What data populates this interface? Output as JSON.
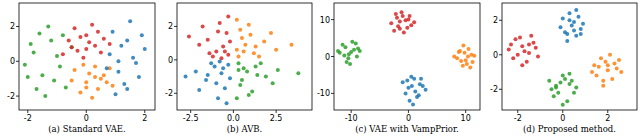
{
  "chart_data": [
    {
      "type": "scatter",
      "title": "(a) Standard VAE.",
      "xlim": [
        -2.3,
        2.35
      ],
      "ylim": [
        -2.8,
        3.35
      ],
      "xticks": [
        -2,
        0,
        2
      ],
      "yticks": [
        -2,
        0,
        2
      ],
      "marker": "circle",
      "series": [
        {
          "color": "#2ca02c",
          "x": [
            -1.8,
            -1.5,
            -1.2,
            -0.9,
            -2.1,
            -1.6,
            -1.0,
            -0.7,
            -1.4,
            -1.9,
            -1.1,
            -0.5,
            -1.7,
            -1.3,
            -0.8,
            -2.0
          ],
          "values": [
            0.5,
            -0.8,
            1.2,
            -0.3,
            -0.2,
            1.6,
            0.3,
            -1.5,
            -2.0,
            1.0,
            -1.1,
            0.8,
            -1.6,
            2.0,
            1.5,
            -0.9
          ]
        },
        {
          "color": "#d62728",
          "x": [
            -0.6,
            -0.3,
            0.0,
            0.3,
            0.6,
            -0.8,
            0.2,
            -0.1,
            0.5,
            -0.4,
            0.8,
            0.1,
            -0.5,
            0.4,
            -0.2,
            0.0
          ],
          "values": [
            1.2,
            0.6,
            1.5,
            0.9,
            1.3,
            0.4,
            2.1,
            0.2,
            0.5,
            1.9,
            1.0,
            1.1,
            0.8,
            1.7,
            1.4,
            0.7
          ]
        },
        {
          "color": "#ff7f0e",
          "x": [
            -0.4,
            0.0,
            0.3,
            0.6,
            0.9,
            -0.2,
            0.2,
            0.5,
            -0.5,
            0.8,
            0.1,
            0.4,
            -0.1,
            0.7,
            0.3,
            0.0
          ],
          "values": [
            -0.5,
            -1.2,
            -0.3,
            -0.8,
            -1.4,
            -1.8,
            -2.1,
            -1.0,
            -1.1,
            -0.4,
            -0.7,
            -1.6,
            -0.2,
            -1.2,
            -0.9,
            -1.5
          ]
        },
        {
          "color": "#1f77b4",
          "x": [
            0.8,
            1.1,
            1.4,
            1.7,
            2.0,
            0.9,
            1.3,
            1.6,
            1.0,
            1.5,
            1.8,
            1.2,
            0.7,
            1.4,
            1.9,
            1.1
          ],
          "values": [
            0.4,
            -0.6,
            1.2,
            -0.1,
            0.7,
            1.7,
            -1.3,
            0.2,
            -1.9,
            2.3,
            -0.9,
            0.9,
            -0.4,
            -1.6,
            1.5,
            0.0
          ]
        }
      ]
    },
    {
      "type": "scatter",
      "title": "(b) AVB.",
      "xlim": [
        -3.3,
        4.6
      ],
      "ylim": [
        -3.0,
        3.4
      ],
      "xticks": [
        {
          "value": -2.5,
          "label": "-2.5"
        },
        {
          "value": 0,
          "label": "0.0"
        },
        {
          "value": 2.5,
          "label": "2.5"
        }
      ],
      "yticks": [
        -2,
        0,
        2
      ],
      "marker": "circle",
      "series": [
        {
          "color": "#d62728",
          "x": [
            -0.3,
            -0.6,
            -1.0,
            -1.5,
            -2.0,
            -0.4,
            -0.8,
            -1.2,
            -0.2,
            -1.8,
            -0.5,
            -2.6,
            -0.9,
            -0.3,
            -1.4,
            -0.7
          ],
          "values": [
            0.3,
            0.8,
            0.5,
            1.2,
            0.9,
            1.6,
            2.2,
            0.2,
            1.1,
            2.0,
            0.5,
            1.4,
            1.7,
            2.6,
            0.4,
            0.1
          ]
        },
        {
          "color": "#ff7f0e",
          "x": [
            0.3,
            0.7,
            1.2,
            1.8,
            2.5,
            0.4,
            1.0,
            1.5,
            0.2,
            2.2,
            0.6,
            3.4,
            0.9,
            0.5,
            1.3,
            0.2
          ],
          "values": [
            0.2,
            0.9,
            0.4,
            1.1,
            0.6,
            1.8,
            1.5,
            0.2,
            2.4,
            1.6,
            0.5,
            0.9,
            2.1,
            1.3,
            0.8,
            0.6
          ]
        },
        {
          "color": "#1f77b4",
          "x": [
            -0.3,
            -0.7,
            -1.1,
            -1.6,
            -2.2,
            -0.5,
            -0.9,
            -1.3,
            -0.2,
            -2.0,
            -0.6,
            -2.8,
            -1.0,
            -0.4,
            -1.5,
            -0.8
          ],
          "values": [
            -0.3,
            -0.8,
            -0.4,
            -1.2,
            -0.7,
            -1.7,
            -2.3,
            -0.2,
            -1.1,
            -1.8,
            -0.5,
            -1.0,
            -1.4,
            -2.6,
            -0.9,
            -0.1
          ]
        },
        {
          "color": "#2ca02c",
          "x": [
            0.3,
            0.8,
            1.3,
            1.9,
            2.6,
            0.4,
            1.1,
            1.6,
            0.2,
            2.3,
            0.6,
            3.8,
            0.9,
            0.5,
            1.4,
            0.3
          ],
          "values": [
            -0.2,
            -0.7,
            -0.4,
            -1.0,
            -0.6,
            -1.5,
            -1.9,
            -0.2,
            -2.3,
            -1.4,
            -0.5,
            -0.8,
            -2.1,
            -1.2,
            -0.9,
            -0.6
          ]
        }
      ]
    },
    {
      "type": "scatter",
      "title": "(c) VAE with VampPrior.",
      "xlim": [
        -13,
        12.5
      ],
      "ylim": [
        -14.5,
        14.5
      ],
      "xticks": [
        -10,
        0,
        10
      ],
      "yticks": [
        -10,
        0,
        10
      ],
      "marker": "circle",
      "series": [
        {
          "color": "#2ca02c",
          "x": [
            -12,
            -11,
            -10.5,
            -9.5,
            -9,
            -11.5,
            -10,
            -8.5,
            -10.8,
            -9.2,
            -11.2,
            -10.2,
            -8.8,
            -9.8,
            -12.3,
            -10.4
          ],
          "values": [
            1,
            2.5,
            -0.5,
            1.8,
            0,
            3.2,
            1.2,
            1.5,
            -1.5,
            3.5,
            0.3,
            -2,
            2.2,
            4,
            1.5,
            0.6
          ]
        },
        {
          "color": "#d62728",
          "x": [
            -3,
            -2,
            -1.5,
            -0.5,
            0.5,
            -2.5,
            -1,
            0,
            -1.8,
            -0.8,
            1,
            -1.2,
            -0.2,
            -2.2,
            0.2,
            -1.5
          ],
          "values": [
            9,
            10.5,
            7.5,
            9.8,
            8.5,
            7,
            11,
            10,
            8.2,
            6.5,
            9.3,
            12,
            7.8,
            11.5,
            11,
            9.5
          ]
        },
        {
          "color": "#ff7f0e",
          "x": [
            8,
            9,
            10,
            11,
            9.5,
            10.5,
            8.5,
            11.2,
            9.8,
            10.2,
            8.8,
            11.5,
            9.2,
            10.8,
            9.6,
            10.4
          ],
          "values": [
            0,
            1.5,
            -1,
            0.5,
            -2.5,
            2,
            -0.5,
            -1.5,
            1,
            -2,
            1.2,
            0.2,
            -1.2,
            -3,
            3,
            0
          ]
        },
        {
          "color": "#1f77b4",
          "x": [
            -1,
            0,
            1,
            2,
            3,
            -0.5,
            0.5,
            1.5,
            2.5,
            0.2,
            1.2,
            -0.2,
            0.8,
            1.8,
            2.2,
            0.6
          ],
          "values": [
            -7,
            -8.5,
            -6,
            -7.5,
            -9,
            -10,
            -5.5,
            -11,
            -8,
            -12,
            -9.5,
            -6.5,
            -13,
            -10.5,
            -6,
            -8
          ]
        }
      ]
    },
    {
      "type": "scatter",
      "title": "(d) Proposed method.",
      "xlim": [
        -2.7,
        3.3
      ],
      "ylim": [
        -3.2,
        3.0
      ],
      "xticks": [
        -2,
        0,
        2
      ],
      "yticks": [
        -2,
        0,
        2
      ],
      "marker": "circle",
      "series": [
        {
          "color": "#d62728",
          "x": [
            -2.4,
            -2.1,
            -1.8,
            -1.5,
            -1.2,
            -2.2,
            -1.9,
            -1.6,
            -1.3,
            -2.0,
            -1.7,
            -1.4,
            -2.3,
            -1.8,
            -1.5,
            -1.1
          ],
          "values": [
            0.3,
            0.9,
            0.5,
            0.1,
            0.4,
            -0.2,
            1.0,
            -0.4,
            0.7,
            0.0,
            0.2,
            1.1,
            0.6,
            -0.6,
            0.6,
            -0.1
          ]
        },
        {
          "color": "#1f77b4",
          "x": [
            -0.1,
            0.2,
            0.5,
            0.8,
            0.0,
            0.3,
            0.6,
            0.9,
            0.1,
            0.4,
            0.7,
            0.2,
            0.5,
            0.8,
            0.3,
            0.6
          ],
          "values": [
            1.6,
            1.2,
            1.9,
            1.5,
            2.1,
            2.4,
            1.1,
            1.8,
            1.3,
            1.7,
            2.2,
            0.8,
            1.4,
            1.2,
            2.0,
            2.6
          ]
        },
        {
          "color": "#2ca02c",
          "x": [
            -0.6,
            -0.3,
            0.0,
            0.3,
            0.5,
            -0.4,
            -0.1,
            0.2,
            -0.5,
            0.1,
            0.4,
            -0.2,
            0.0,
            0.3,
            -0.3,
            0.6
          ],
          "values": [
            -1.5,
            -1.9,
            -1.2,
            -1.7,
            -2.2,
            -2.4,
            -1.6,
            -2.7,
            -2.0,
            -1.4,
            -1.5,
            -2.2,
            -2.9,
            -1.1,
            -1.8,
            -1.9
          ]
        },
        {
          "color": "#ff7f0e",
          "x": [
            1.4,
            1.7,
            2.0,
            2.3,
            2.6,
            1.5,
            1.8,
            2.1,
            2.4,
            1.6,
            1.9,
            2.2,
            1.3,
            2.0,
            2.5,
            1.8
          ],
          "values": [
            -0.6,
            -0.2,
            -0.9,
            -0.5,
            -1.0,
            -1.2,
            -1.5,
            0.0,
            -0.8,
            -0.7,
            -0.4,
            -1.4,
            -1.0,
            -0.6,
            -0.3,
            -1.8
          ]
        }
      ]
    }
  ]
}
